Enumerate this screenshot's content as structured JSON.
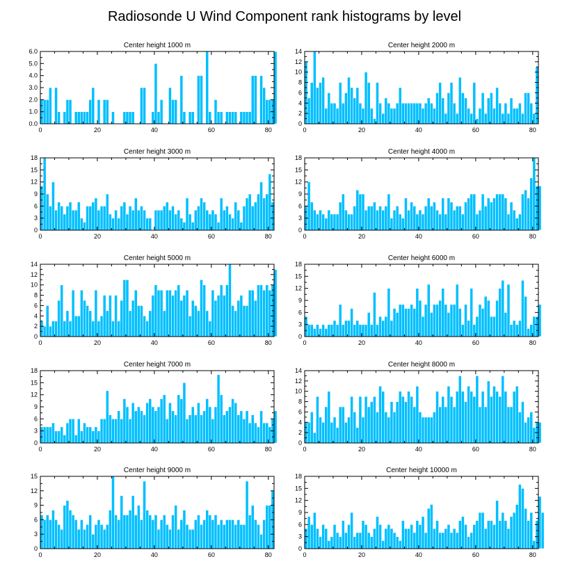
{
  "chart_data": {
    "title": "Radiosonde U Wind Component rank histograms by level",
    "type": "bar",
    "bar_color": "#00bfff",
    "bar_edge_color": "#ffffff",
    "panels": [
      {
        "title": "Center height 1000 m",
        "type": "bar",
        "x_ticks": [
          0,
          20,
          40,
          60,
          80
        ],
        "xlim": [
          0,
          82
        ],
        "ylim": [
          0,
          6
        ],
        "y_ticks": [
          "0.0",
          "1.0",
          "2.0",
          "3.0",
          "4.0",
          "5.0",
          "6.0"
        ],
        "values": [
          2,
          2,
          2,
          3,
          0,
          3,
          1,
          0,
          1,
          2,
          2,
          0,
          1,
          1,
          1,
          1,
          1,
          2,
          3,
          0,
          2,
          0,
          2,
          2,
          0,
          1,
          0,
          0,
          0,
          1,
          1,
          1,
          1,
          0,
          0,
          3,
          3,
          0,
          0,
          1,
          5,
          1,
          2,
          0,
          0,
          3,
          2,
          2,
          0,
          4,
          1,
          0,
          1,
          1,
          0,
          4,
          4,
          0,
          6,
          1,
          0,
          2,
          1,
          1,
          0,
          1,
          1,
          1,
          1,
          0,
          1,
          1,
          1,
          1,
          4,
          4,
          0,
          4,
          3,
          2,
          2,
          2,
          6
        ]
      },
      {
        "title": "Center height 2000 m",
        "type": "bar",
        "x_ticks": [
          0,
          20,
          40,
          60,
          80
        ],
        "xlim": [
          0,
          82
        ],
        "ylim": [
          0,
          14
        ],
        "y_ticks": [
          "0",
          "2",
          "4",
          "6",
          "8",
          "10",
          "12",
          "14"
        ],
        "values": [
          12,
          5,
          8,
          14,
          7,
          8,
          9,
          3,
          6,
          4,
          4,
          3,
          8,
          4,
          6,
          9,
          7,
          5,
          7,
          4,
          3,
          10,
          8,
          3,
          1,
          8,
          4,
          2,
          5,
          4,
          3,
          3,
          4,
          7,
          4,
          4,
          4,
          4,
          4,
          4,
          4,
          3,
          4,
          5,
          4,
          3,
          6,
          8,
          5,
          2,
          6,
          8,
          4,
          2,
          9,
          6,
          5,
          3,
          2,
          8,
          1,
          3,
          6,
          2,
          5,
          6,
          3,
          7,
          4,
          2,
          4,
          2,
          5,
          3,
          3,
          4,
          2,
          6,
          6,
          4,
          2,
          11
        ]
      },
      {
        "title": "Center height 3000 m",
        "type": "bar",
        "x_ticks": [
          0,
          20,
          40,
          60,
          80
        ],
        "xlim": [
          0,
          82
        ],
        "ylim": [
          0,
          18
        ],
        "y_ticks": [
          "0",
          "3",
          "6",
          "9",
          "12",
          "15",
          "18"
        ],
        "values": [
          11,
          18,
          9,
          6,
          12,
          5,
          7,
          6,
          4,
          6,
          7,
          5,
          5,
          7,
          3,
          2,
          6,
          6,
          7,
          8,
          5,
          6,
          6,
          9,
          4,
          3,
          5,
          3,
          6,
          7,
          4,
          6,
          5,
          8,
          5,
          6,
          5,
          3,
          3,
          0,
          5,
          5,
          5,
          6,
          7,
          5,
          6,
          4,
          5,
          3,
          2,
          8,
          4,
          2,
          5,
          6,
          8,
          7,
          5,
          4,
          5,
          4,
          2,
          8,
          5,
          6,
          4,
          3,
          7,
          5,
          2,
          6,
          8,
          9,
          6,
          7,
          9,
          12,
          8,
          9,
          14,
          7
        ]
      },
      {
        "title": "Center height 4000 m",
        "type": "bar",
        "x_ticks": [
          0,
          20,
          40,
          60,
          80
        ],
        "xlim": [
          0,
          82
        ],
        "ylim": [
          0,
          18
        ],
        "y_ticks": [
          "0",
          "3",
          "6",
          "9",
          "12",
          "15",
          "18"
        ],
        "values": [
          6,
          12,
          7,
          5,
          4,
          5,
          4,
          3,
          5,
          4,
          4,
          4,
          7,
          9,
          5,
          4,
          4,
          6,
          10,
          9,
          9,
          5,
          6,
          6,
          7,
          5,
          6,
          5,
          6,
          9,
          3,
          5,
          6,
          4,
          3,
          8,
          5,
          7,
          6,
          4,
          5,
          4,
          6,
          8,
          6,
          7,
          5,
          4,
          8,
          4,
          8,
          7,
          5,
          6,
          6,
          4,
          7,
          8,
          9,
          9,
          4,
          5,
          9,
          6,
          8,
          7,
          8,
          9,
          9,
          9,
          8,
          4,
          7,
          5,
          3,
          4,
          9,
          10,
          8,
          13,
          18,
          11,
          11
        ]
      },
      {
        "title": "Center height 5000 m",
        "type": "bar",
        "x_ticks": [
          0,
          20,
          40,
          60,
          80
        ],
        "xlim": [
          0,
          82
        ],
        "ylim": [
          0,
          14
        ],
        "y_ticks": [
          "0",
          "2",
          "4",
          "6",
          "8",
          "10",
          "12",
          "14"
        ],
        "values": [
          3,
          2,
          6,
          2,
          3,
          3,
          7,
          10,
          3,
          5,
          3,
          9,
          4,
          4,
          9,
          7,
          6,
          5,
          3,
          9,
          3,
          4,
          8,
          5,
          8,
          3,
          8,
          3,
          7,
          11,
          11,
          5,
          7,
          9,
          6,
          6,
          4,
          3,
          5,
          8,
          10,
          9,
          9,
          5,
          9,
          9,
          8,
          9,
          10,
          7,
          8,
          9,
          4,
          7,
          6,
          5,
          11,
          10,
          5,
          3,
          9,
          7,
          8,
          10,
          8,
          10,
          14,
          6,
          5,
          7,
          8,
          6,
          6,
          9,
          9,
          7,
          10,
          10,
          9,
          10,
          9,
          10,
          13
        ]
      },
      {
        "title": "Center height 6000 m",
        "type": "bar",
        "x_ticks": [
          0,
          20,
          40,
          60,
          80
        ],
        "xlim": [
          0,
          82
        ],
        "ylim": [
          0,
          18
        ],
        "y_ticks": [
          "0",
          "3",
          "6",
          "9",
          "12",
          "15",
          "18"
        ],
        "values": [
          5,
          3,
          3,
          2,
          3,
          2,
          3,
          2,
          3,
          3,
          4,
          3,
          8,
          3,
          4,
          4,
          7,
          3,
          4,
          3,
          3,
          3,
          6,
          3,
          11,
          3,
          5,
          4,
          5,
          12,
          4,
          7,
          6,
          8,
          8,
          7,
          7,
          8,
          7,
          12,
          9,
          5,
          8,
          13,
          6,
          8,
          8,
          9,
          12,
          8,
          6,
          8,
          8,
          13,
          7,
          3,
          8,
          4,
          12,
          3,
          5,
          8,
          7,
          10,
          9,
          5,
          5,
          9,
          12,
          14,
          6,
          13,
          3,
          4,
          3,
          4,
          14,
          10,
          2,
          3,
          5,
          5,
          8
        ]
      },
      {
        "title": "Center height 7000 m",
        "type": "bar",
        "x_ticks": [
          0,
          20,
          40,
          60,
          80
        ],
        "xlim": [
          0,
          82
        ],
        "ylim": [
          0,
          18
        ],
        "y_ticks": [
          "0",
          "3",
          "6",
          "9",
          "12",
          "15",
          "18"
        ],
        "values": [
          4,
          4,
          4,
          4,
          5,
          3,
          3,
          4,
          2,
          5,
          6,
          6,
          2,
          6,
          3,
          5,
          4,
          4,
          3,
          4,
          3,
          6,
          6,
          13,
          7,
          6,
          6,
          8,
          6,
          11,
          9,
          6,
          10,
          8,
          9,
          8,
          7,
          10,
          11,
          9,
          8,
          9,
          11,
          12,
          6,
          10,
          8,
          7,
          12,
          11,
          15,
          6,
          7,
          9,
          7,
          10,
          7,
          8,
          11,
          9,
          6,
          9,
          17,
          12,
          7,
          8,
          9,
          11,
          10,
          7,
          8,
          6,
          8,
          5,
          7,
          5,
          4,
          8,
          5,
          5,
          4,
          6,
          8
        ]
      },
      {
        "title": "Center height 8000 m",
        "type": "bar",
        "x_ticks": [
          0,
          20,
          40,
          60,
          80
        ],
        "xlim": [
          0,
          82
        ],
        "ylim": [
          0,
          14
        ],
        "y_ticks": [
          "0",
          "2",
          "4",
          "6",
          "8",
          "10",
          "12",
          "14"
        ],
        "values": [
          4,
          4,
          6,
          2,
          9,
          5,
          4,
          7,
          10,
          4,
          5,
          3,
          7,
          7,
          4,
          5,
          9,
          6,
          3,
          9,
          5,
          9,
          7,
          8,
          9,
          6,
          11,
          10,
          6,
          5,
          8,
          6,
          8,
          10,
          9,
          8,
          10,
          9,
          7,
          11,
          6,
          5,
          5,
          5,
          5,
          6,
          10,
          7,
          9,
          7,
          11,
          9,
          7,
          10,
          13,
          10,
          8,
          11,
          10,
          9,
          13,
          7,
          10,
          7,
          12,
          9,
          11,
          10,
          9,
          13,
          10,
          7,
          7,
          10,
          11,
          6,
          8,
          4,
          5,
          6,
          3,
          4,
          4
        ]
      },
      {
        "title": "Center height 9000 m",
        "type": "bar",
        "x_ticks": [
          0,
          20,
          40,
          60,
          80
        ],
        "xlim": [
          0,
          82
        ],
        "ylim": [
          0,
          15
        ],
        "y_ticks": [
          "0",
          "3",
          "6",
          "9",
          "12",
          "15"
        ],
        "values": [
          7,
          6,
          7,
          6,
          8,
          6,
          5,
          4,
          9,
          10,
          8,
          7,
          6,
          4,
          6,
          4,
          5,
          7,
          3,
          5,
          6,
          5,
          4,
          5,
          8,
          15,
          7,
          6,
          11,
          7,
          7,
          8,
          11,
          7,
          9,
          6,
          14,
          8,
          7,
          6,
          7,
          4,
          6,
          7,
          5,
          4,
          7,
          9,
          4,
          6,
          8,
          5,
          4,
          4,
          6,
          7,
          5,
          6,
          8,
          7,
          6,
          7,
          5,
          6,
          5,
          6,
          6,
          6,
          5,
          6,
          5,
          5,
          14,
          7,
          9,
          6,
          5,
          3,
          6,
          9,
          9,
          12
        ]
      },
      {
        "title": "Center height 10000 m",
        "type": "bar",
        "x_ticks": [
          0,
          20,
          40,
          60,
          80
        ],
        "xlim": [
          0,
          82
        ],
        "ylim": [
          0,
          18
        ],
        "y_ticks": [
          "0",
          "3",
          "6",
          "9",
          "12",
          "15",
          "18"
        ],
        "values": [
          5,
          8,
          6,
          9,
          5,
          3,
          6,
          5,
          2,
          3,
          6,
          4,
          3,
          7,
          4,
          6,
          9,
          3,
          4,
          4,
          7,
          6,
          4,
          3,
          5,
          8,
          6,
          2,
          5,
          6,
          5,
          4,
          3,
          2,
          7,
          5,
          5,
          6,
          4,
          7,
          6,
          8,
          4,
          10,
          11,
          5,
          7,
          4,
          4,
          5,
          6,
          4,
          5,
          4,
          7,
          8,
          6,
          3,
          4,
          6,
          7,
          9,
          9,
          5,
          7,
          7,
          6,
          12,
          7,
          9,
          7,
          5,
          8,
          9,
          11,
          16,
          15,
          10,
          7,
          9,
          2,
          7,
          13,
          9
        ]
      }
    ]
  }
}
